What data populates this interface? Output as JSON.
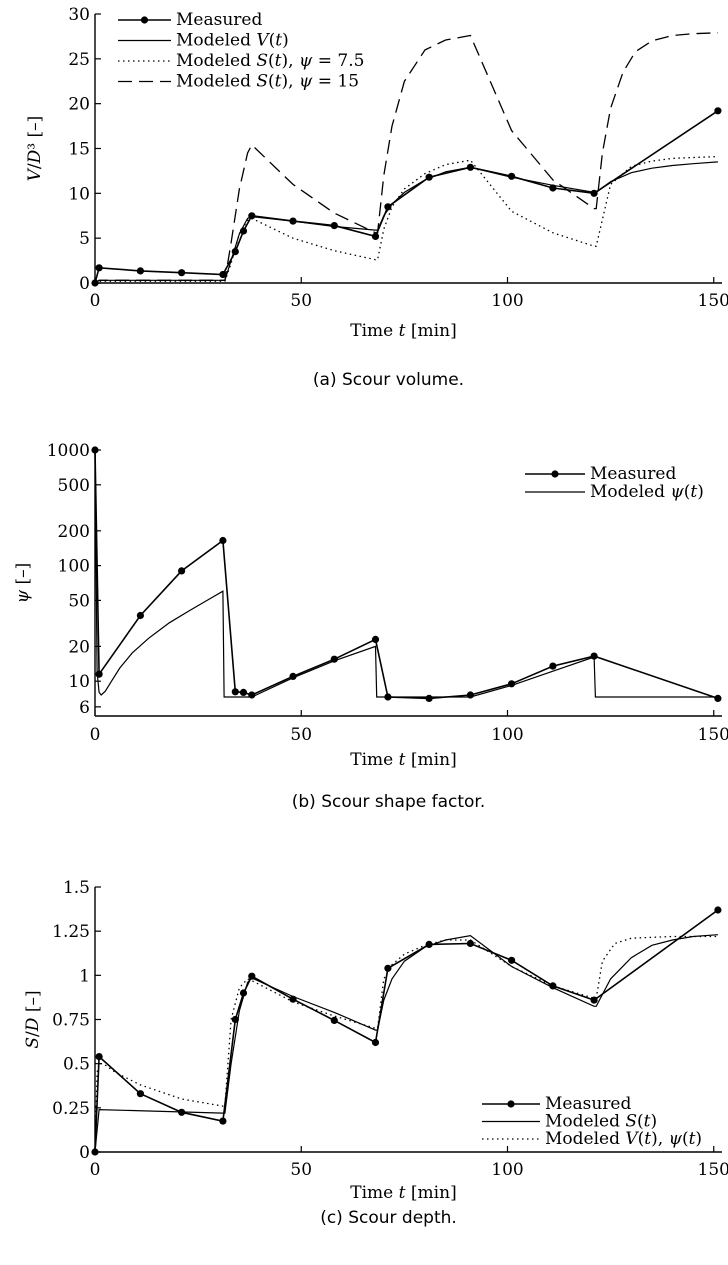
{
  "chart_data": [
    {
      "id": "a",
      "type": "line",
      "caption": "(a)  Scour volume.",
      "xlabel": "Time t [min]",
      "ylabel": "V/D³ [–]",
      "xlim": [
        0,
        152
      ],
      "ylim": [
        0,
        30
      ],
      "xticks": [
        0,
        50,
        100,
        150
      ],
      "xtick_labels": [
        "0",
        "50",
        "100",
        "150"
      ],
      "yticks": [
        0,
        5,
        10,
        15,
        20,
        25,
        30
      ],
      "ytick_labels": [
        "0",
        "5",
        "10",
        "15",
        "20",
        "25",
        "30"
      ],
      "legend_position": "top-left",
      "series": [
        {
          "name": "Measured",
          "style": "measured",
          "x": [
            0,
            1,
            11,
            21,
            31,
            34,
            36,
            38,
            48,
            58,
            68,
            71,
            81,
            91,
            101,
            111,
            121,
            151
          ],
          "y": [
            0,
            1.7,
            1.35,
            1.15,
            0.95,
            3.5,
            5.8,
            7.5,
            6.9,
            6.4,
            5.2,
            8.5,
            11.8,
            12.9,
            11.9,
            10.6,
            10.0,
            19.2
          ]
        },
        {
          "name": "Modeled V(t)",
          "style": "solid",
          "x": [
            0,
            1,
            31,
            31.5,
            33,
            35,
            37,
            38,
            48,
            58,
            68,
            68.5,
            70,
            72,
            75,
            80,
            85,
            91,
            101,
            111,
            121,
            121.5,
            125,
            130,
            135,
            140,
            145,
            151
          ],
          "y": [
            0,
            0.3,
            0.3,
            0.3,
            2.5,
            5.5,
            7.2,
            7.4,
            6.9,
            6.3,
            5.9,
            5.9,
            7.5,
            8.8,
            10.1,
            11.5,
            12.4,
            12.9,
            11.8,
            10.9,
            10.1,
            10.1,
            11.3,
            12.3,
            12.8,
            13.1,
            13.3,
            13.5
          ]
        },
        {
          "name": "Modeled S(t), ψ = 7.5",
          "style": "dotted",
          "x": [
            0,
            1,
            31,
            31.5,
            33,
            35,
            37,
            38,
            48,
            58,
            68,
            68.5,
            70,
            72,
            75,
            80,
            85,
            91,
            101,
            111,
            121,
            121.5,
            125,
            130,
            135,
            140,
            145,
            151
          ],
          "y": [
            0,
            0.2,
            0.2,
            0.2,
            2.2,
            5.5,
            7.0,
            7.2,
            5.0,
            3.6,
            2.6,
            2.6,
            6.0,
            8.5,
            10.5,
            12.2,
            13.2,
            13.7,
            8.0,
            5.6,
            4.1,
            4.1,
            11.0,
            13.0,
            13.6,
            13.9,
            14.0,
            14.1
          ]
        },
        {
          "name": "Modeled S(t), ψ = 15",
          "style": "dashed",
          "x": [
            0,
            1,
            31,
            31.5,
            33,
            35,
            37,
            38,
            48,
            58,
            68,
            68.5,
            70,
            72,
            75,
            80,
            85,
            91,
            101,
            111,
            121,
            121.5,
            123,
            125,
            128,
            131,
            135,
            140,
            145,
            151
          ],
          "y": [
            0,
            0.3,
            0.3,
            0.3,
            4.5,
            10.5,
            14.5,
            15.4,
            11.0,
            7.8,
            5.6,
            5.6,
            12.0,
            17.5,
            22.5,
            26.0,
            27.1,
            27.6,
            17.0,
            11.5,
            8.3,
            8.3,
            14.5,
            19.5,
            23.5,
            25.8,
            27.0,
            27.6,
            27.8,
            27.9
          ]
        }
      ]
    },
    {
      "id": "b",
      "type": "line",
      "caption": "(b)  Scour shape factor.",
      "xlabel": "Time t [min]",
      "ylabel": "ψ [–]",
      "xlim": [
        0,
        152
      ],
      "ylim": [
        5,
        1000
      ],
      "yscale": "log",
      "xticks": [
        0,
        50,
        100,
        150
      ],
      "xtick_labels": [
        "0",
        "50",
        "100",
        "150"
      ],
      "yticks": [
        6,
        10,
        20,
        50,
        100,
        200,
        500,
        1000
      ],
      "ytick_labels": [
        "6",
        "10",
        "20",
        "50",
        "100",
        "200",
        "500",
        "1000"
      ],
      "legend_position": "top-right",
      "series": [
        {
          "name": "Measured",
          "style": "measured",
          "x": [
            0,
            1,
            11,
            21,
            31,
            34,
            36,
            38,
            48,
            58,
            68,
            71,
            81,
            91,
            101,
            111,
            121,
            151
          ],
          "y": [
            1000,
            11.5,
            37,
            90,
            165,
            8.1,
            8.0,
            7.6,
            11.0,
            15.5,
            23,
            7.3,
            7.1,
            7.6,
            9.5,
            13.5,
            16.5,
            7.1
          ]
        },
        {
          "name": "Modeled ψ(t)",
          "style": "solid",
          "x": [
            0,
            0.5,
            1,
            1.5,
            2.5,
            4,
            6,
            9,
            13,
            18,
            23,
            28,
            31,
            31.3,
            38,
            48,
            58,
            68,
            68.3,
            71,
            81,
            91,
            101,
            111,
            121,
            121.3,
            151
          ],
          "y": [
            1000,
            12,
            8.0,
            7.6,
            8.2,
            10,
            13,
            17.5,
            23.5,
            32,
            41,
            52,
            60,
            7.3,
            7.3,
            10.7,
            15.0,
            20,
            7.3,
            7.3,
            7.3,
            7.3,
            9.2,
            12.2,
            16.2,
            7.3,
            7.3
          ]
        }
      ]
    },
    {
      "id": "c",
      "type": "line",
      "caption": "(c)  Scour depth.",
      "xlabel": "Time t [min]",
      "ylabel": "S/D [–]",
      "xlim": [
        0,
        152
      ],
      "ylim": [
        0,
        1.5
      ],
      "xticks": [
        0,
        50,
        100,
        150
      ],
      "xtick_labels": [
        "0",
        "50",
        "100",
        "150"
      ],
      "yticks": [
        0,
        0.25,
        0.5,
        0.75,
        1,
        1.25,
        1.5
      ],
      "ytick_labels": [
        "0",
        "0.25",
        "0.5",
        "0.75",
        "1",
        "1.25",
        "1.5"
      ],
      "legend_position": "bottom-right",
      "series": [
        {
          "name": "Measured",
          "style": "measured",
          "x": [
            0,
            1,
            11,
            21,
            31,
            34,
            36,
            38,
            48,
            58,
            68,
            71,
            81,
            91,
            101,
            111,
            121,
            151
          ],
          "y": [
            0,
            0.54,
            0.33,
            0.225,
            0.175,
            0.75,
            0.9,
            0.995,
            0.865,
            0.745,
            0.62,
            1.04,
            1.175,
            1.18,
            1.085,
            0.94,
            0.86,
            1.37
          ]
        },
        {
          "name": "Modeled S(t)",
          "style": "solid",
          "x": [
            0,
            1,
            31,
            31.5,
            33,
            35,
            37,
            38,
            48,
            58,
            68,
            68.5,
            70,
            72,
            75,
            80,
            85,
            91,
            101,
            111,
            121,
            121.5,
            125,
            130,
            135,
            140,
            145,
            151
          ],
          "y": [
            0,
            0.24,
            0.22,
            0.22,
            0.5,
            0.8,
            0.96,
            0.985,
            0.88,
            0.79,
            0.69,
            0.69,
            0.86,
            0.98,
            1.08,
            1.16,
            1.2,
            1.225,
            1.05,
            0.93,
            0.825,
            0.825,
            0.98,
            1.1,
            1.17,
            1.2,
            1.22,
            1.23
          ]
        },
        {
          "name": "Modeled V(t), ψ(t)",
          "style": "dotted",
          "x": [
            0,
            0.5,
            1,
            2,
            5,
            11,
            21,
            31,
            31.5,
            33,
            35,
            37,
            38,
            48,
            58,
            68,
            68.5,
            70,
            72,
            75,
            80,
            85,
            91,
            101,
            111,
            121,
            121.5,
            123,
            126,
            130,
            140,
            151
          ],
          "y": [
            0,
            0.45,
            0.5,
            0.5,
            0.45,
            0.38,
            0.3,
            0.26,
            0.26,
            0.75,
            0.93,
            0.98,
            0.97,
            0.85,
            0.77,
            0.7,
            0.7,
            0.98,
            1.06,
            1.12,
            1.17,
            1.2,
            1.2,
            1.05,
            0.94,
            0.87,
            0.87,
            1.08,
            1.18,
            1.21,
            1.22,
            1.22
          ]
        }
      ]
    }
  ]
}
